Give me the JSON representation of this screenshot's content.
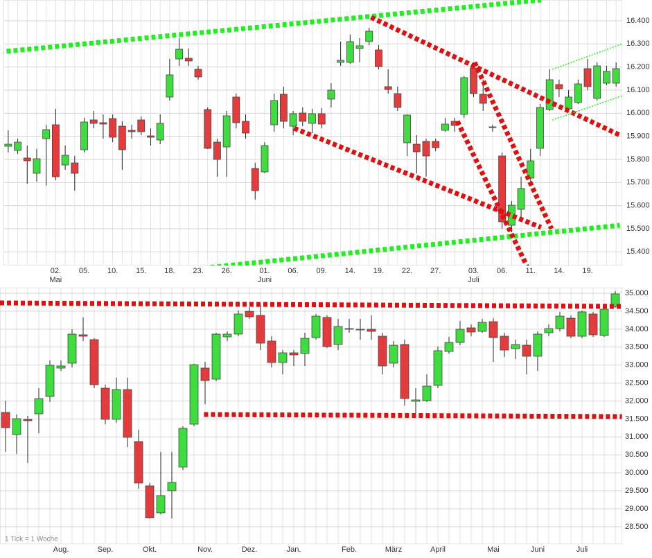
{
  "chart_data": [
    {
      "type": "candlestick",
      "up_color": "#3fdc3f",
      "down_color": "#e43c3c",
      "grid": true,
      "ylim": [
        15341,
        16490
      ],
      "yticks": [
        {
          "value": 15400,
          "label": "15.400"
        },
        {
          "value": 15500,
          "label": "15.500"
        },
        {
          "value": 15600,
          "label": "15.600"
        },
        {
          "value": 15700,
          "label": "15.700"
        },
        {
          "value": 15800,
          "label": "15.800"
        },
        {
          "value": 15900,
          "label": "15.900"
        },
        {
          "value": 16000,
          "label": "16.000"
        },
        {
          "value": 16100,
          "label": "16.100"
        },
        {
          "value": 16200,
          "label": "16.200"
        },
        {
          "value": 16300,
          "label": "16.300"
        },
        {
          "value": 16400,
          "label": "16.400"
        }
      ],
      "categories": [
        null,
        null,
        null,
        null,
        null,
        "02.",
        null,
        null,
        "05.",
        null,
        null,
        "10.",
        null,
        null,
        "15.",
        null,
        null,
        "18.",
        null,
        null,
        "23.",
        null,
        null,
        "26.",
        null,
        null,
        null,
        "01.",
        null,
        null,
        "06.",
        null,
        null,
        "09.",
        null,
        null,
        "14.",
        null,
        null,
        "19.",
        null,
        null,
        "22.",
        null,
        null,
        "27.",
        null,
        null,
        null,
        "03.",
        null,
        null,
        "06.",
        null,
        null,
        "11.",
        null,
        null,
        "14.",
        null,
        null,
        "19.",
        null,
        null,
        null
      ],
      "months": [
        null,
        null,
        null,
        null,
        null,
        "Mai",
        null,
        null,
        null,
        null,
        null,
        null,
        null,
        null,
        null,
        null,
        null,
        null,
        null,
        null,
        null,
        null,
        null,
        null,
        null,
        null,
        null,
        "Juni",
        null,
        null,
        null,
        null,
        null,
        null,
        null,
        null,
        null,
        null,
        null,
        null,
        null,
        null,
        null,
        null,
        null,
        null,
        null,
        null,
        null,
        "Juli",
        null,
        null,
        null,
        null,
        null,
        null,
        null,
        null,
        null,
        null,
        null,
        null,
        null,
        null,
        null
      ],
      "open": [
        15857,
        15839,
        15806,
        15740,
        15890,
        15950,
        15776,
        15785,
        15842,
        15971,
        15959,
        15977,
        15944,
        15926,
        15971,
        15902,
        15884,
        16070,
        16235,
        16238,
        16190,
        16016,
        15875,
        15854,
        16070,
        15965,
        15761,
        15746,
        15950,
        16082,
        15944,
        16001,
        15956,
        15998,
        16061,
        16220,
        16220,
        16280,
        16310,
        16274,
        16115,
        16085,
        15872,
        15866,
        15878,
        15878,
        15926,
        15965,
        15995,
        16196,
        16082,
        15941,
        15815,
        15515,
        15584,
        15719,
        15848,
        16016,
        16124,
        16019,
        16046,
        16193,
        16064,
        16130,
        16130
      ],
      "high": [
        15926,
        15890,
        15860,
        15845,
        15950,
        16019,
        15860,
        15815,
        15980,
        16010,
        15995,
        15995,
        15965,
        15950,
        15986,
        15935,
        15995,
        16235,
        16325,
        16280,
        16205,
        16025,
        15890,
        16010,
        16085,
        15995,
        15785,
        15875,
        16085,
        16115,
        16010,
        16025,
        16019,
        16022,
        16130,
        16310,
        16340,
        16325,
        16370,
        16295,
        16190,
        16115,
        15995,
        15905,
        15890,
        15890,
        15980,
        15980,
        16160,
        16220,
        16145,
        15950,
        15830,
        15620,
        15725,
        15845,
        16040,
        16190,
        16145,
        16100,
        16145,
        16235,
        16220,
        16205,
        16220
      ],
      "low": [
        15830,
        15824,
        15695,
        15704,
        15686,
        15710,
        15755,
        15665,
        15830,
        15935,
        15890,
        15875,
        15755,
        15890,
        15905,
        15860,
        15866,
        16055,
        16205,
        16205,
        16145,
        15845,
        15725,
        15725,
        15935,
        15890,
        15626,
        15740,
        15920,
        15935,
        15905,
        15944,
        15914,
        15935,
        16025,
        16205,
        16214,
        16220,
        16295,
        16190,
        16085,
        16010,
        15815,
        15740,
        15725,
        15836,
        15920,
        15920,
        15980,
        16070,
        16010,
        15920,
        15500,
        15485,
        15545,
        15695,
        15815,
        16010,
        16070,
        16004,
        16040,
        16100,
        16055,
        16121,
        16115
      ],
      "close": [
        15866,
        15875,
        15794,
        15803,
        15929,
        15725,
        15818,
        15740,
        15962,
        15956,
        15953,
        15896,
        15842,
        15920,
        15920,
        15896,
        15956,
        16166,
        16277,
        16226,
        16157,
        15848,
        15800,
        15989,
        15959,
        15914,
        15665,
        15860,
        16055,
        15965,
        15998,
        15965,
        15998,
        15953,
        16100,
        16229,
        16310,
        16292,
        16355,
        16202,
        16103,
        16025,
        15992,
        15833,
        15815,
        15851,
        15953,
        15947,
        16154,
        16085,
        16043,
        15938,
        15530,
        15602,
        15674,
        15794,
        16025,
        16145,
        16106,
        16070,
        16127,
        16115,
        16205,
        16181,
        16193
      ],
      "trendlines": [
        {
          "color": "#22ee22",
          "weight": "heavy",
          "x": [
            -0.9,
            56.1
          ],
          "y": [
            16265,
            16490
          ]
        },
        {
          "color": "#22ee22",
          "weight": "heavy",
          "x": [
            7.5,
            64.4
          ],
          "y": [
            15275,
            15515
          ]
        },
        {
          "color": "#dd1111",
          "weight": "heavy",
          "x": [
            38.2,
            64.4
          ],
          "y": [
            16415,
            15905
          ]
        },
        {
          "color": "#dd1111",
          "weight": "heavy",
          "x": [
            30.1,
            56.1
          ],
          "y": [
            15935,
            15506
          ]
        },
        {
          "color": "#dd1111",
          "weight": "heavy",
          "x": [
            49.1,
            57.2
          ],
          "y": [
            16220,
            15500
          ]
        },
        {
          "color": "#dd1111",
          "weight": "heavy",
          "x": [
            47.3,
            55.7
          ],
          "y": [
            15965,
            15245
          ]
        },
        {
          "color": "#22ee22",
          "weight": "light",
          "x": [
            57.3,
            64.7
          ],
          "y": [
            16190,
            16301
          ]
        },
        {
          "color": "#22ee22",
          "weight": "light",
          "x": [
            57.3,
            64.7
          ],
          "y": [
            15971,
            16076
          ]
        }
      ]
    },
    {
      "type": "candlestick",
      "up_color": "#3fdc3f",
      "down_color": "#e43c3c",
      "grid": true,
      "note": "1 Tick = 1 Woche",
      "ylim": [
        28015,
        35155
      ],
      "yticks": [
        {
          "value": 28500,
          "label": "28.500"
        },
        {
          "value": 29000,
          "label": "29.000"
        },
        {
          "value": 29500,
          "label": "29.500"
        },
        {
          "value": 30000,
          "label": "30.000"
        },
        {
          "value": 30500,
          "label": "30.500"
        },
        {
          "value": 31000,
          "label": "31.000"
        },
        {
          "value": 31500,
          "label": "31.500"
        },
        {
          "value": 32000,
          "label": "32.000"
        },
        {
          "value": 32500,
          "label": "32.500"
        },
        {
          "value": 33000,
          "label": "33.000"
        },
        {
          "value": 33500,
          "label": "33.500"
        },
        {
          "value": 34000,
          "label": "34.000"
        },
        {
          "value": 34500,
          "label": "34.500"
        },
        {
          "value": 35000,
          "label": "35.000"
        }
      ],
      "categories": [
        null,
        null,
        null,
        null,
        null,
        "Aug.",
        null,
        null,
        null,
        "Sep.",
        null,
        null,
        null,
        "Okt.",
        null,
        null,
        null,
        null,
        "Nov.",
        null,
        null,
        null,
        "Dez.",
        null,
        null,
        null,
        "Jan.",
        null,
        null,
        null,
        null,
        "Feb.",
        null,
        null,
        null,
        "März",
        null,
        null,
        null,
        "April",
        null,
        null,
        null,
        null,
        "Mai",
        null,
        null,
        null,
        "Juni",
        null,
        null,
        null,
        "Juli",
        null,
        null,
        null
      ],
      "open": [
        31682,
        31065,
        31489,
        31643,
        32126,
        32917,
        33052,
        33843,
        33708,
        32357,
        31489,
        32319,
        30872,
        29637,
        28885,
        29502,
        30158,
        31354,
        32917,
        32608,
        33785,
        33862,
        34498,
        34383,
        33669,
        33071,
        33341,
        33322,
        33765,
        34325,
        33573,
        34016,
        33978,
        33997,
        33804,
        33052,
        33573,
        31991,
        32010,
        32434,
        33380,
        33630,
        34036,
        33939,
        34209,
        33804,
        33457,
        33553,
        33245,
        33900,
        34016,
        34306,
        33804,
        34421,
        33823,
        34633
      ],
      "high": [
        32010,
        31624,
        31586,
        32357,
        33129,
        33129,
        33997,
        34325,
        33746,
        32454,
        32647,
        32647,
        31200,
        29715,
        30583,
        30583,
        31297,
        33032,
        33090,
        33900,
        33939,
        34518,
        34614,
        34672,
        33804,
        33418,
        33418,
        33900,
        34421,
        34383,
        34286,
        34286,
        34286,
        34383,
        33900,
        33669,
        33708,
        32357,
        32743,
        33515,
        33785,
        34228,
        34132,
        34286,
        34306,
        33900,
        33708,
        33708,
        33939,
        34132,
        34479,
        34383,
        34518,
        34479,
        34672,
        35058
      ],
      "low": [
        30583,
        30525,
        30274,
        31103,
        31971,
        32840,
        32936,
        33669,
        32357,
        31354,
        31393,
        30718,
        29560,
        28731,
        28846,
        28731,
        30081,
        31297,
        31914,
        32550,
        33669,
        33804,
        34286,
        33418,
        32936,
        32743,
        32975,
        32975,
        33708,
        33476,
        33418,
        33900,
        33708,
        33708,
        32743,
        32936,
        31875,
        31663,
        31971,
        32357,
        33322,
        33553,
        33804,
        33900,
        33090,
        33225,
        33167,
        32743,
        32840,
        33804,
        33939,
        33746,
        33746,
        33785,
        33785,
        34595
      ],
      "close": [
        31258,
        31508,
        31451,
        32068,
        32994,
        32975,
        33862,
        33804,
        32454,
        31489,
        32319,
        30988,
        29715,
        28750,
        29367,
        29734,
        31238,
        33013,
        32569,
        33862,
        33862,
        34421,
        34344,
        33611,
        33071,
        33341,
        33283,
        33746,
        34363,
        33515,
        34074,
        33997,
        33997,
        33939,
        32975,
        33553,
        32068,
        32029,
        32415,
        33399,
        33630,
        33997,
        33920,
        34190,
        33765,
        33418,
        33573,
        33245,
        33862,
        34016,
        34363,
        33804,
        34479,
        33843,
        34556,
        34981
      ],
      "trendlines": [
        {
          "color": "#dd1111",
          "weight": "heavy",
          "x": [
            -0.5,
            55.6
          ],
          "y": [
            34730,
            34633
          ]
        },
        {
          "color": "#dd1111",
          "weight": "heavy",
          "x": [
            17.9,
            55.6
          ],
          "y": [
            31624,
            31566
          ]
        }
      ]
    }
  ]
}
